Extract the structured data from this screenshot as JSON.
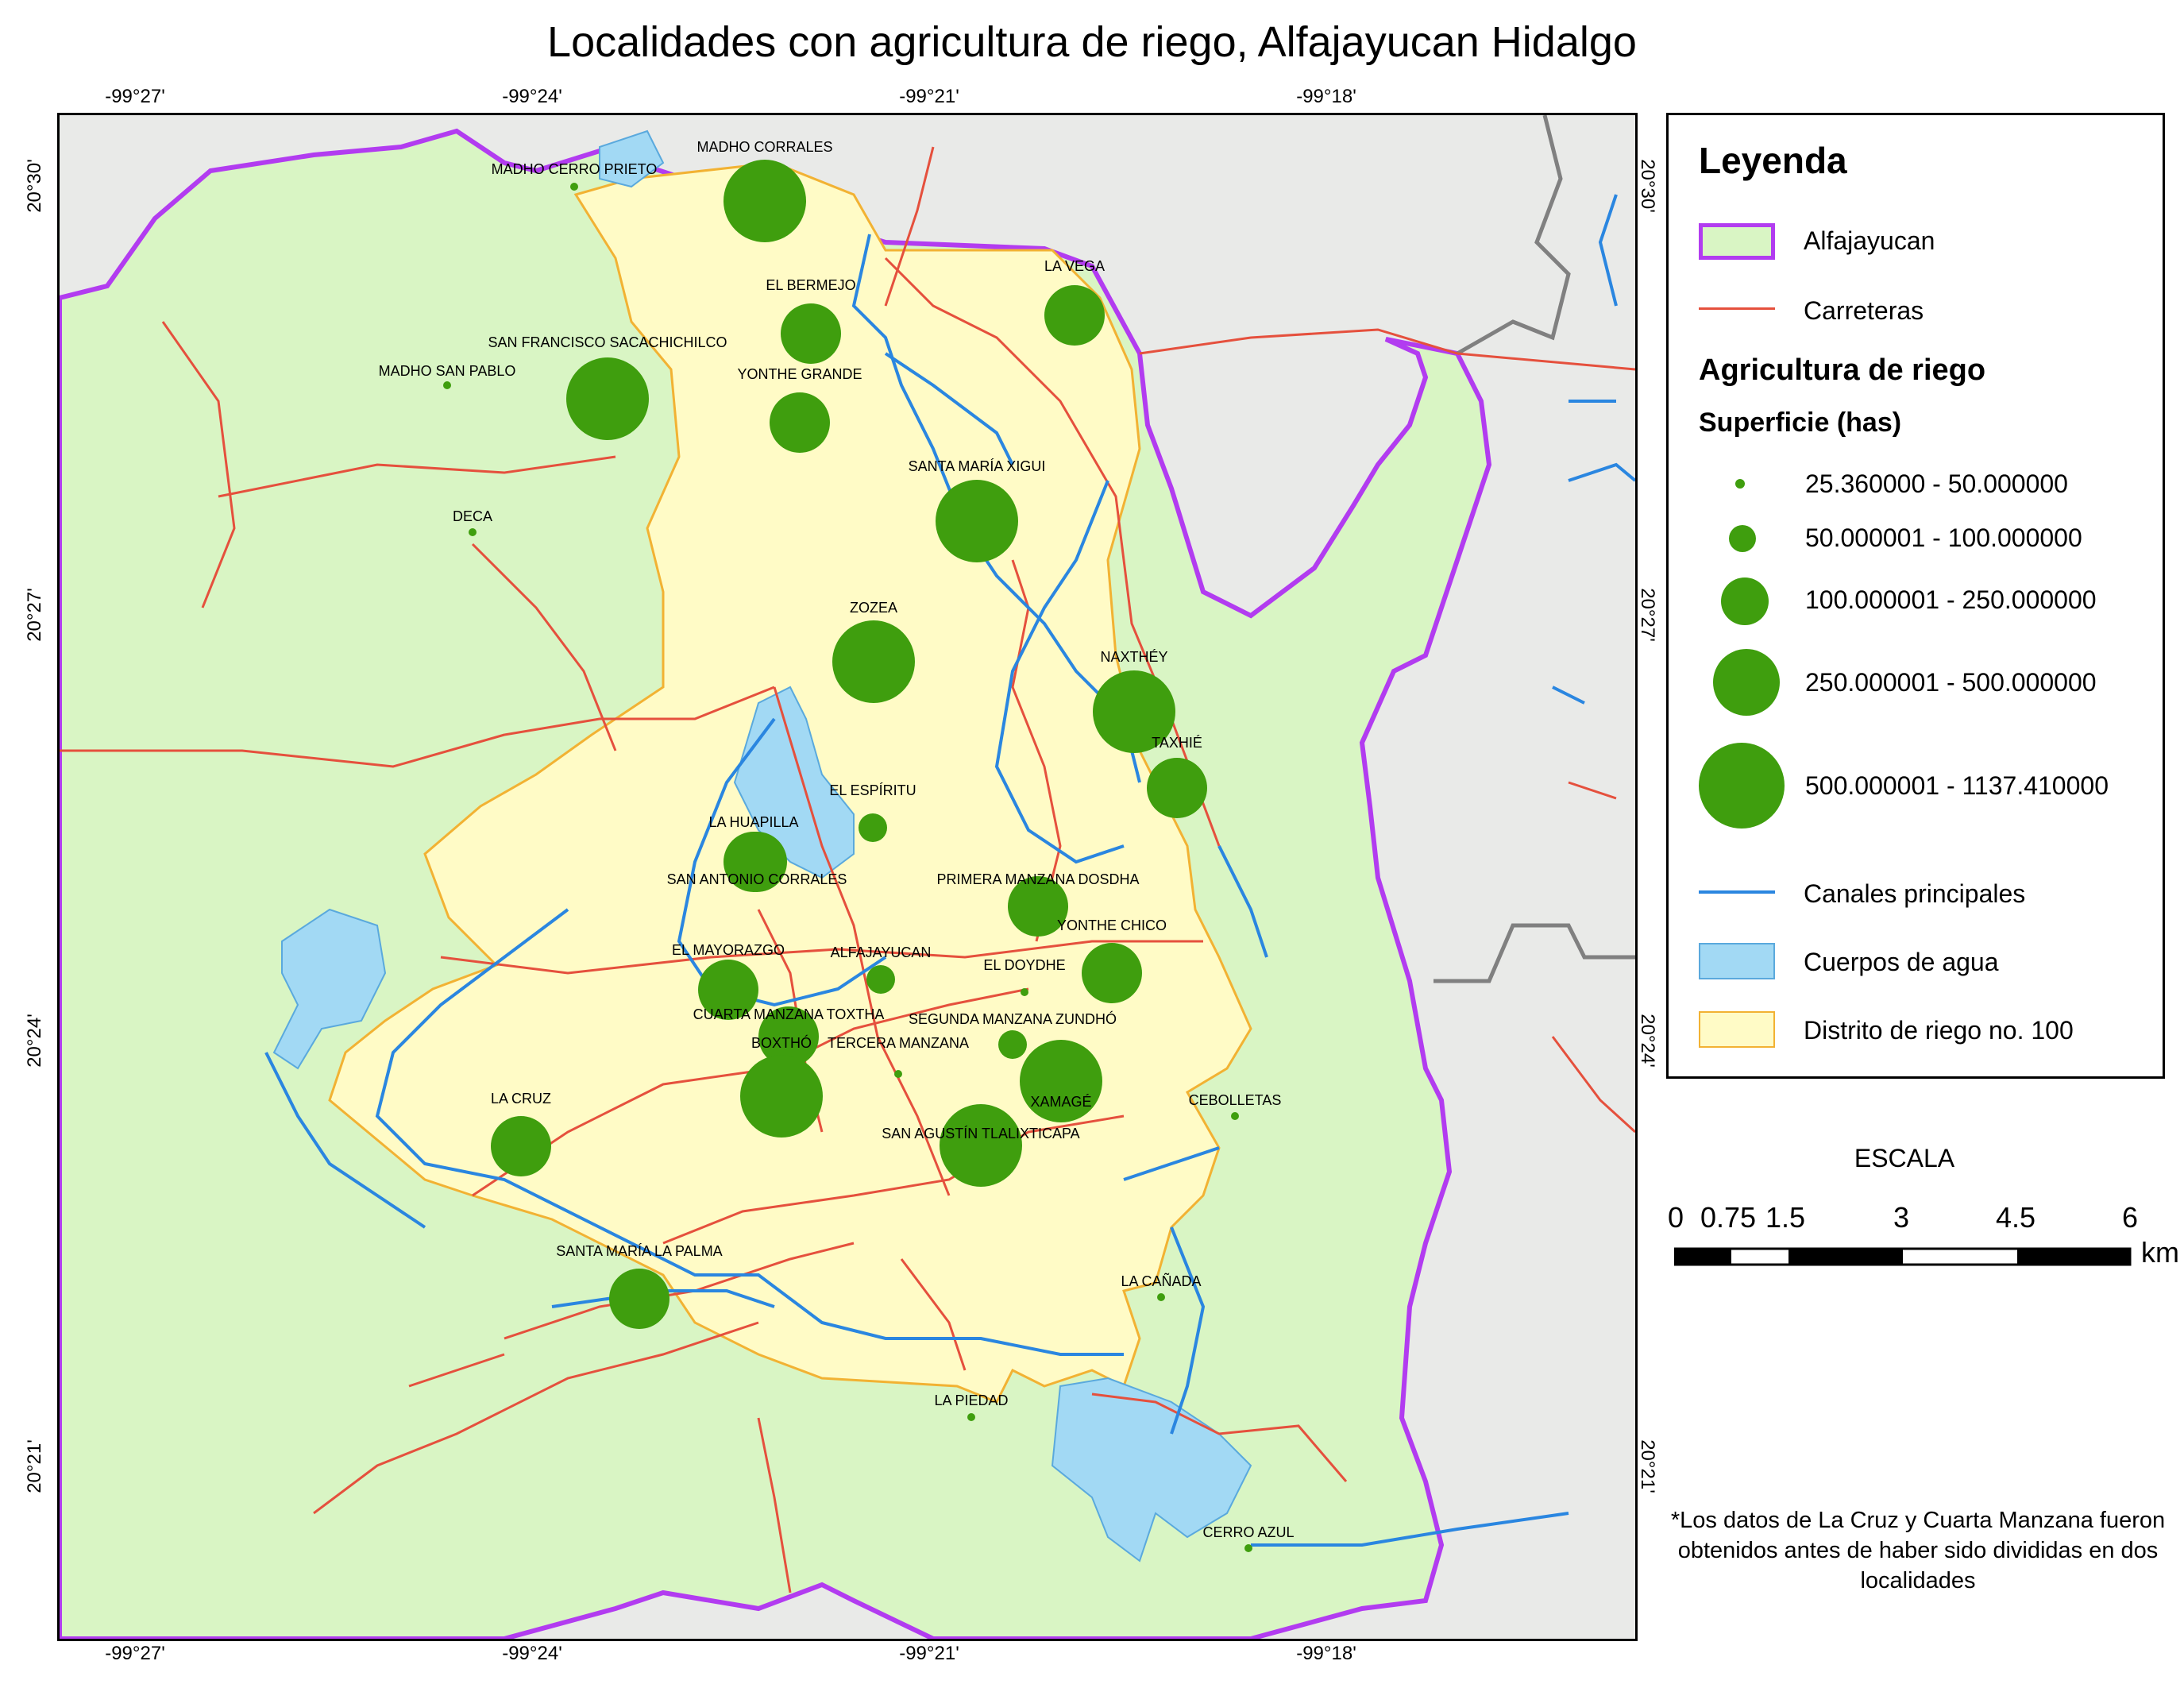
{
  "title": "Localidades con agricultura de riego, Alfajayucan Hidalgo",
  "coordinates": {
    "longitude_ticks": [
      "-99°27'",
      "-99°24'",
      "-99°21'",
      "-99°18'"
    ],
    "latitude_ticks": [
      "20°30'",
      "20°27'",
      "20°24'",
      "20°21'"
    ]
  },
  "colors": {
    "municipality_fill": "#d9f5c4",
    "municipality_border": "#b23cf0",
    "roads": "#e5503d",
    "canals": "#2a86e0",
    "water": "#a2d9f4",
    "irrigation_district_fill": "#fffbc6",
    "irrigation_district_border": "#f2b233",
    "bubble": "#3f9e0e",
    "gray_relief": "#e9eae8",
    "gray_boundary": "#808080"
  },
  "localities": [
    {
      "name": "MADHO CORRALES",
      "class": 5
    },
    {
      "name": "MADHO CERRO PRIETO",
      "class": 1
    },
    {
      "name": "EL BERMEJO",
      "class": 3
    },
    {
      "name": "LA VEGA",
      "class": 3
    },
    {
      "name": "SAN FRANCISCO SACACHICHILCO",
      "class": 5
    },
    {
      "name": "MADHO SAN PABLO",
      "class": 1
    },
    {
      "name": "YONTHE GRANDE",
      "class": 3
    },
    {
      "name": "SANTA MARÍA XIGUI",
      "class": 5
    },
    {
      "name": "DECA",
      "class": 1
    },
    {
      "name": "ZOZEA",
      "class": 5
    },
    {
      "name": "NAXTHÉY",
      "class": 5
    },
    {
      "name": "TAXHIÉ",
      "class": 3
    },
    {
      "name": "EL ESPÍRITU",
      "class": 2
    },
    {
      "name": "LA HUAPILLA",
      "class": 3
    },
    {
      "name": "SAN ANTONIO CORRALES",
      "class": 3
    },
    {
      "name": "PRIMERA MANZANA DOSDHA",
      "class": 3
    },
    {
      "name": "YONTHE CHICO",
      "class": 3
    },
    {
      "name": "EL MAYORAZGO",
      "class": 3
    },
    {
      "name": "ALFAJAYUCAN",
      "class": 2
    },
    {
      "name": "EL DOYDHE",
      "class": 1
    },
    {
      "name": "CUARTA MANZANA TOXTHA",
      "class": 3
    },
    {
      "name": "SEGUNDA MANZANA ZUNDHÓ",
      "class": 2
    },
    {
      "name": "BOXTHÓ",
      "class": 5
    },
    {
      "name": "TERCERA MANZANA",
      "class": 1
    },
    {
      "name": "XAMAGÉ",
      "class": 5
    },
    {
      "name": "SAN AGUSTÍN TLALIXTICAPA",
      "class": 5
    },
    {
      "name": "CEBOLLETAS",
      "class": 1
    },
    {
      "name": "LA CRUZ",
      "class": 3
    },
    {
      "name": "SANTA MARÍA LA PALMA",
      "class": 3
    },
    {
      "name": "LA CAÑADA",
      "class": 1
    },
    {
      "name": "LA PIEDAD",
      "class": 1
    },
    {
      "name": "CERRO AZUL",
      "class": 1
    }
  ],
  "legend": {
    "title": "Leyenda",
    "municipality": "Alfajayucan",
    "roads": "Carreteras",
    "agri_title": "Agricultura de riego",
    "surface_title": "Superficie (has)",
    "classes": [
      "25.360000 - 50.000000",
      "50.000001 - 100.000000",
      "100.000001 - 250.000000",
      "250.000001 - 500.000000",
      "500.000001 - 1137.410000"
    ],
    "canals": "Canales principales",
    "water": "Cuerpos de agua",
    "district": "Distrito de riego no. 100"
  },
  "scale": {
    "title": "ESCALA",
    "labels": [
      "0",
      "0.75",
      "1.5",
      "3",
      "4.5",
      "6"
    ],
    "unit": "km"
  },
  "footnote": "*Los datos de La Cruz y Cuarta Manzana fueron obtenidos antes de haber sido divididas en dos localidades"
}
